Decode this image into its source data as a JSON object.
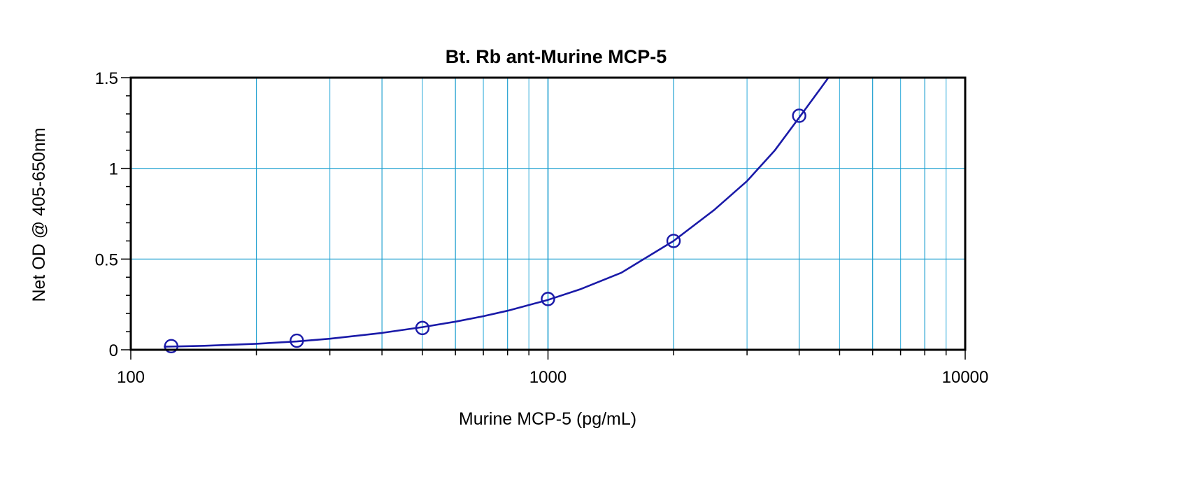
{
  "chart_data": {
    "type": "scatter",
    "title": "Bt. Rb ant-Murine MCP-5",
    "xlabel": "Murine MCP-5 (pg/mL)",
    "ylabel": "Net OD @ 405-650nm",
    "x_scale": "log",
    "xlim": [
      100,
      10000
    ],
    "ylim": [
      0,
      1.5
    ],
    "x_ticks": [
      100,
      1000,
      10000
    ],
    "x_tick_labels": [
      "100",
      "1000",
      "10000"
    ],
    "y_ticks": [
      0,
      0.5,
      1,
      1.5
    ],
    "y_tick_labels": [
      "0",
      "0.5",
      "1",
      "1.5"
    ],
    "grid": true,
    "series": [
      {
        "marker": "open-circle",
        "color": "#1a1aa8",
        "points": [
          {
            "x": 125,
            "y": 0.02
          },
          {
            "x": 250,
            "y": 0.05
          },
          {
            "x": 500,
            "y": 0.12
          },
          {
            "x": 1000,
            "y": 0.28
          },
          {
            "x": 2000,
            "y": 0.6
          },
          {
            "x": 4000,
            "y": 1.29
          }
        ]
      }
    ],
    "fit_curve": {
      "color": "#1a1aa8",
      "points": [
        {
          "x": 120,
          "y": 0.017
        },
        {
          "x": 150,
          "y": 0.022
        },
        {
          "x": 200,
          "y": 0.033
        },
        {
          "x": 250,
          "y": 0.046
        },
        {
          "x": 300,
          "y": 0.061
        },
        {
          "x": 400,
          "y": 0.093
        },
        {
          "x": 500,
          "y": 0.125
        },
        {
          "x": 600,
          "y": 0.155
        },
        {
          "x": 700,
          "y": 0.185
        },
        {
          "x": 800,
          "y": 0.215
        },
        {
          "x": 1000,
          "y": 0.275
        },
        {
          "x": 1200,
          "y": 0.335
        },
        {
          "x": 1500,
          "y": 0.425
        },
        {
          "x": 2000,
          "y": 0.6
        },
        {
          "x": 2500,
          "y": 0.77
        },
        {
          "x": 3000,
          "y": 0.93
        },
        {
          "x": 3500,
          "y": 1.1
        },
        {
          "x": 4000,
          "y": 1.28
        },
        {
          "x": 4500,
          "y": 1.44
        },
        {
          "x": 4700,
          "y": 1.5
        }
      ]
    },
    "colors": {
      "grid_major": "#1fa0d0",
      "grid_minor": "#4fb8e0",
      "axis": "#000000",
      "series": "#1a1aa8"
    }
  }
}
